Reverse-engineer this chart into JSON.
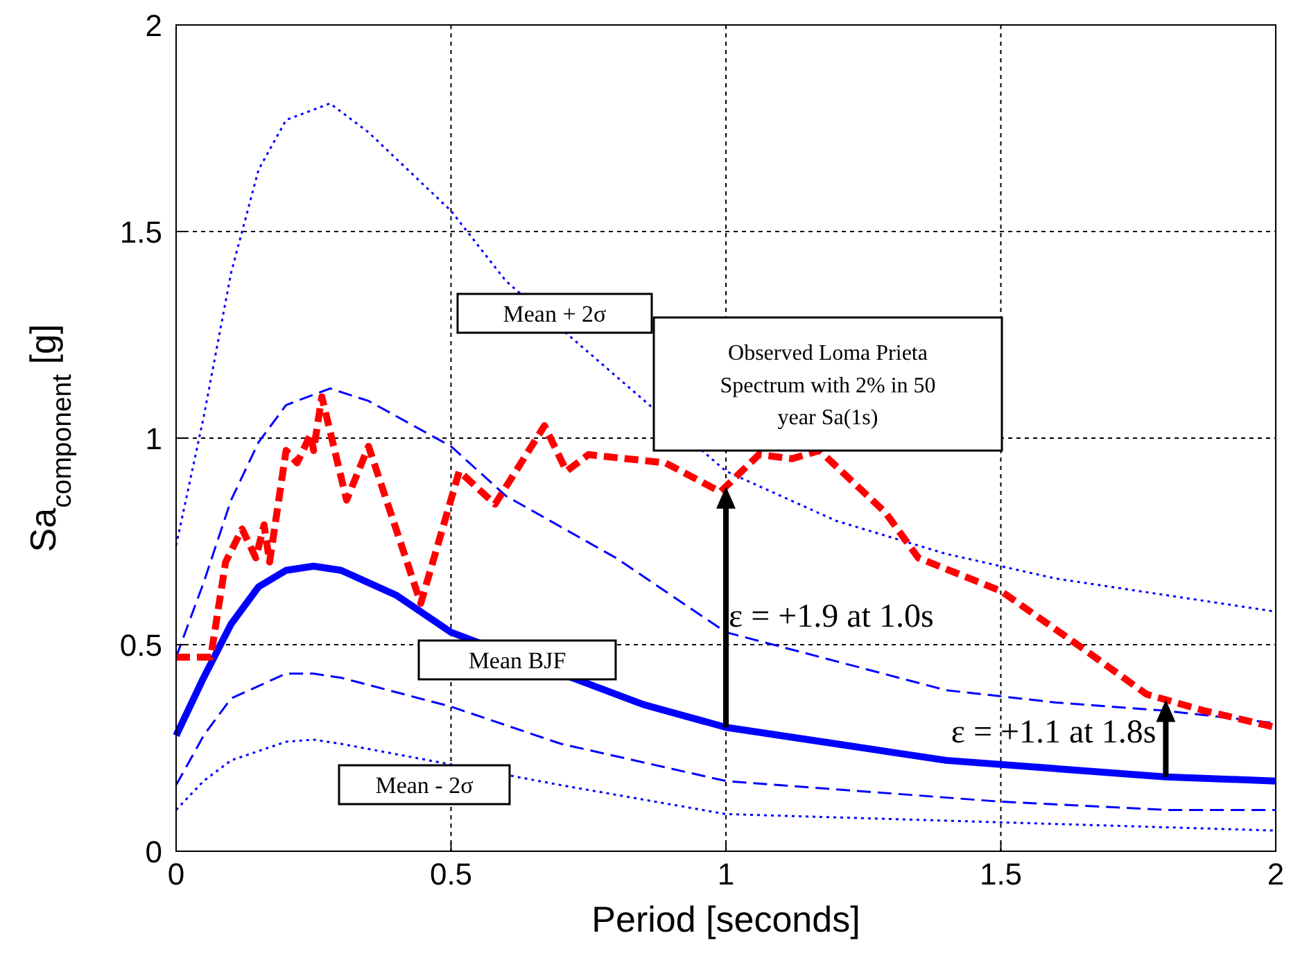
{
  "chart_data": {
    "type": "line",
    "xlabel": "Period [seconds]",
    "ylabel": "Sa$_{component}$ [g]",
    "xlim": [
      0,
      2
    ],
    "ylim": [
      0,
      2
    ],
    "xticks": [
      0,
      0.5,
      1,
      1.5,
      2
    ],
    "yticks": [
      0,
      0.5,
      1,
      1.5,
      2
    ],
    "grid": true,
    "marker": "none",
    "series": [
      {
        "color": "#0000ff",
        "line_style": "solid",
        "x": [
          0,
          0.05,
          0.1,
          0.15,
          0.2,
          0.25,
          0.3,
          0.4,
          0.5,
          0.85,
          1.0,
          1.2,
          1.4,
          1.6,
          1.8,
          2.0
        ],
        "values": [
          0.28,
          0.42,
          0.55,
          0.64,
          0.68,
          0.69,
          0.68,
          0.62,
          0.53,
          0.355,
          0.3,
          0.26,
          0.22,
          0.2,
          0.18,
          0.17
        ]
      },
      {
        "color": "#0000ff",
        "line_style": "dashed",
        "x": [
          0,
          0.05,
          0.1,
          0.15,
          0.2,
          0.28,
          0.35,
          0.5,
          0.6,
          0.8,
          1.0,
          1.2,
          1.4,
          1.6,
          1.8,
          2.0
        ],
        "values": [
          0.47,
          0.65,
          0.85,
          0.99,
          1.08,
          1.12,
          1.09,
          0.98,
          0.86,
          0.71,
          0.53,
          0.46,
          0.39,
          0.36,
          0.34,
          0.31
        ]
      },
      {
        "color": "#0000ff",
        "line_style": "dotted",
        "x": [
          0,
          0.05,
          0.1,
          0.15,
          0.2,
          0.28,
          0.35,
          0.5,
          0.6,
          0.8,
          1.0,
          1.2,
          1.4,
          1.6,
          1.8,
          2.0
        ],
        "values": [
          0.74,
          1.05,
          1.4,
          1.65,
          1.77,
          1.81,
          1.74,
          1.55,
          1.38,
          1.15,
          0.92,
          0.8,
          0.72,
          0.66,
          0.62,
          0.58
        ]
      },
      {
        "color": "#0000ff",
        "line_style": "dashed",
        "x": [
          0,
          0.05,
          0.1,
          0.2,
          0.25,
          0.3,
          0.5,
          0.7,
          1.0,
          1.2,
          1.5,
          1.8,
          2.0
        ],
        "values": [
          0.16,
          0.28,
          0.37,
          0.43,
          0.43,
          0.42,
          0.35,
          0.26,
          0.17,
          0.15,
          0.12,
          0.1,
          0.1
        ]
      },
      {
        "color": "#0000ff",
        "line_style": "dotted",
        "x": [
          0,
          0.05,
          0.1,
          0.2,
          0.25,
          0.3,
          0.7,
          1.0,
          1.5,
          2.0
        ],
        "values": [
          0.1,
          0.17,
          0.22,
          0.265,
          0.27,
          0.26,
          0.16,
          0.09,
          0.07,
          0.05
        ]
      },
      {
        "color": "#ff0000",
        "line_style": "dashed",
        "x": [
          0,
          0.063,
          0.09,
          0.12,
          0.145,
          0.16,
          0.17,
          0.2,
          0.22,
          0.245,
          0.25,
          0.265,
          0.31,
          0.35,
          0.445,
          0.515,
          0.58,
          0.67,
          0.71,
          0.75,
          0.89,
          0.99,
          1.06,
          1.12,
          1.17,
          1.29,
          1.35,
          1.5,
          1.65,
          1.765,
          1.87,
          2.0
        ],
        "values": [
          0.47,
          0.47,
          0.7,
          0.78,
          0.71,
          0.79,
          0.7,
          0.97,
          0.94,
          1.01,
          0.97,
          1.1,
          0.85,
          0.98,
          0.6,
          0.92,
          0.84,
          1.03,
          0.92,
          0.96,
          0.94,
          0.87,
          0.96,
          0.95,
          0.97,
          0.82,
          0.71,
          0.63,
          0.49,
          0.38,
          0.34,
          0.3
        ]
      }
    ],
    "annotations": [
      "Mean + 2σ",
      "Observed Loma Prieta\nSpectrum with 2% in 50\nyear Sa(1s)",
      "Mean BJF",
      "Mean - 2σ",
      {
        "text": "ε = +1.9 at 1.0s",
        "x": 1.0,
        "y": 0.53
      },
      {
        "text": "ε = +1.1 at 1.8s",
        "x": 1.8,
        "y": 0.34
      }
    ]
  }
}
